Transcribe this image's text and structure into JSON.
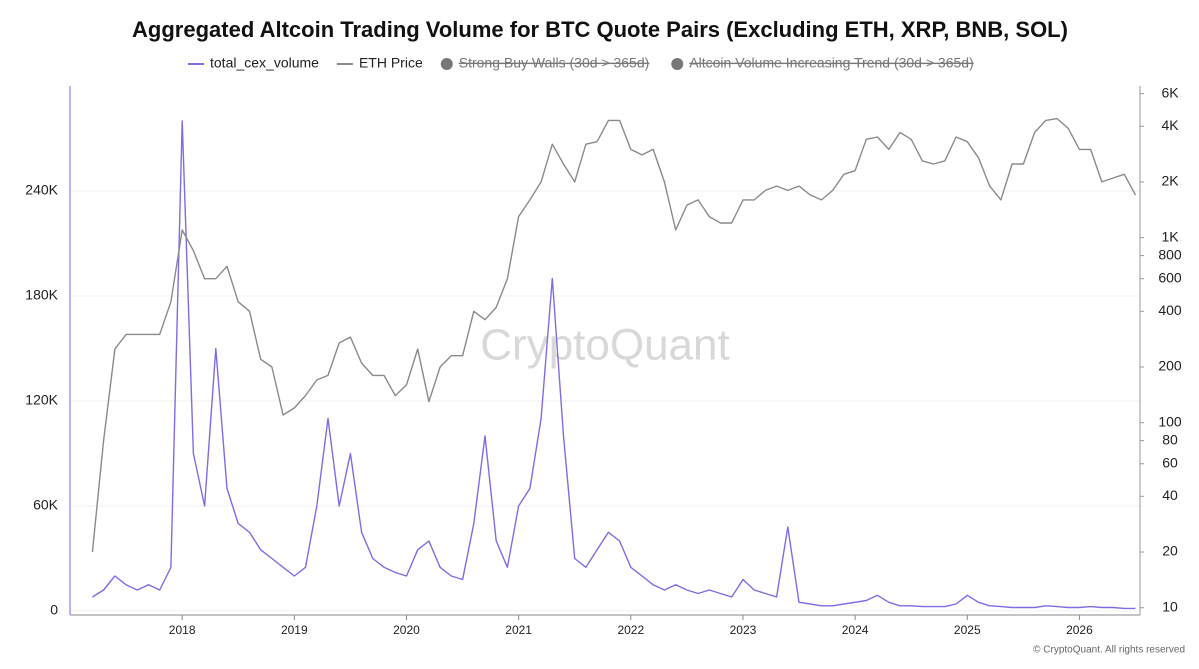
{
  "chart_data": {
    "type": "line",
    "title": "Aggregated Altcoin Trading Volume for BTC Quote Pairs (Excluding ETH, XRP, BNB, SOL)",
    "legend_hidden": [
      "Strong Buy Walls (30d > 365d)",
      "Altcoin Volume Increasing Trend (30d > 365d)"
    ],
    "watermark": "CryptoQuant",
    "source": "© CryptoQuant. All rights reserved",
    "x": [
      2017.2,
      2017.3,
      2017.4,
      2017.5,
      2017.6,
      2017.7,
      2017.8,
      2017.9,
      2018.0,
      2018.1,
      2018.2,
      2018.3,
      2018.4,
      2018.5,
      2018.6,
      2018.7,
      2018.8,
      2018.9,
      2019.0,
      2019.1,
      2019.2,
      2019.3,
      2019.4,
      2019.5,
      2019.6,
      2019.7,
      2019.8,
      2019.9,
      2020.0,
      2020.1,
      2020.2,
      2020.3,
      2020.4,
      2020.5,
      2020.6,
      2020.7,
      2020.8,
      2020.9,
      2021.0,
      2021.1,
      2021.2,
      2021.3,
      2021.4,
      2021.5,
      2021.6,
      2021.7,
      2021.8,
      2021.9,
      2022.0,
      2022.1,
      2022.2,
      2022.3,
      2022.4,
      2022.5,
      2022.6,
      2022.7,
      2022.8,
      2022.9,
      2023.0,
      2023.1,
      2023.2,
      2023.3,
      2023.4,
      2023.5,
      2023.6,
      2023.7,
      2023.8,
      2023.9,
      2024.0,
      2024.1,
      2024.2,
      2024.3,
      2024.4,
      2024.5,
      2024.6,
      2024.7,
      2024.8,
      2024.9,
      2025.0,
      2025.1,
      2025.2,
      2025.3,
      2025.4,
      2025.5,
      2025.6,
      2025.7,
      2025.8,
      2025.9,
      2026.0,
      2026.1,
      2026.2,
      2026.3,
      2026.4,
      2026.5
    ],
    "series": [
      {
        "name": "total_cex_volume",
        "color": "#7b6ee4",
        "axis": "y",
        "values": [
          8000,
          12000,
          20000,
          15000,
          12000,
          15000,
          12000,
          25000,
          280000,
          90000,
          60000,
          150000,
          70000,
          50000,
          45000,
          35000,
          30000,
          25000,
          20000,
          25000,
          60000,
          110000,
          60000,
          90000,
          45000,
          30000,
          25000,
          22000,
          20000,
          35000,
          40000,
          25000,
          20000,
          18000,
          50000,
          100000,
          40000,
          25000,
          60000,
          70000,
          110000,
          190000,
          100000,
          30000,
          25000,
          35000,
          45000,
          40000,
          25000,
          20000,
          15000,
          12000,
          15000,
          12000,
          10000,
          12000,
          10000,
          8000,
          18000,
          12000,
          10000,
          8000,
          48000,
          5000,
          4000,
          3000,
          3000,
          4000,
          5000,
          6000,
          9000,
          5000,
          3000,
          3000,
          2500,
          2500,
          2500,
          4000,
          9000,
          5000,
          3000,
          2500,
          2000,
          2000,
          2000,
          3000,
          2500,
          2000,
          2000,
          2500,
          2000,
          2000,
          1500,
          1500
        ]
      },
      {
        "name": "ETH Price",
        "color": "#8a8a8a",
        "axis": "y2",
        "values": [
          20,
          80,
          250,
          300,
          300,
          300,
          300,
          450,
          1100,
          850,
          600,
          600,
          700,
          450,
          400,
          220,
          200,
          110,
          120,
          140,
          170,
          180,
          270,
          290,
          210,
          180,
          180,
          140,
          160,
          250,
          130,
          200,
          230,
          230,
          400,
          360,
          420,
          600,
          1300,
          1600,
          2000,
          3200,
          2500,
          2000,
          3200,
          3300,
          4300,
          4300,
          3000,
          2800,
          3000,
          2000,
          1100,
          1500,
          1600,
          1300,
          1200,
          1200,
          1600,
          1600,
          1800,
          1900,
          1800,
          1900,
          1700,
          1600,
          1800,
          2200,
          2300,
          3400,
          3500,
          3000,
          3700,
          3400,
          2600,
          2500,
          2600,
          3500,
          3300,
          2700,
          1900,
          1600,
          2500,
          2500,
          3700,
          4300,
          4400,
          3900,
          3000,
          3000,
          2000,
          2100,
          2200,
          1700
        ]
      }
    ],
    "xlim": [
      2017.0,
      2026.54
    ],
    "xticks": [
      2018,
      2019,
      2020,
      2021,
      2022,
      2023,
      2024,
      2025,
      2026
    ],
    "ylim": [
      0,
      300000
    ],
    "yticks": [
      {
        "value": 0,
        "label": "0"
      },
      {
        "value": 60000,
        "label": "60K"
      },
      {
        "value": 120000,
        "label": "120K"
      },
      {
        "value": 180000,
        "label": "180K"
      },
      {
        "value": 240000,
        "label": "240K"
      }
    ],
    "y2lim": [
      9.6,
      6600
    ],
    "y2log": true,
    "y2ticks": [
      10,
      20,
      40,
      60,
      80,
      100,
      200,
      400,
      600,
      800,
      {
        "value": 1000,
        "label": "1K"
      },
      {
        "value": 2000,
        "label": "2K"
      },
      {
        "value": 4000,
        "label": "4K"
      },
      {
        "value": 6000,
        "label": "6K"
      }
    ],
    "grid": true
  }
}
